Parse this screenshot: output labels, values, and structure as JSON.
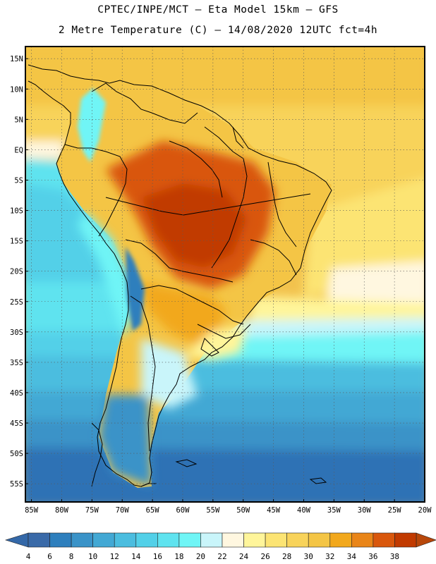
{
  "header": {
    "line1": "CPTEC/INPE/MCT –  Eta Model 15km – GFS",
    "line2": "2 Metre Temperature (C) – 14/08/2020 12UTC fct=4h"
  },
  "map": {
    "lat_labels": [
      "15N",
      "10N",
      "5N",
      "EQ",
      "5S",
      "10S",
      "15S",
      "20S",
      "25S",
      "30S",
      "35S",
      "40S",
      "45S",
      "50S",
      "55S"
    ],
    "lon_labels": [
      "85W",
      "80W",
      "75W",
      "70W",
      "65W",
      "60W",
      "55W",
      "50W",
      "45W",
      "40W",
      "35W",
      "30W",
      "25W",
      "20W"
    ],
    "lat_range": [
      17,
      -58
    ],
    "lon_range": [
      -86,
      -20
    ]
  },
  "colorbar": {
    "labels": [
      "4",
      "6",
      "8",
      "10",
      "12",
      "14",
      "16",
      "18",
      "20",
      "22",
      "24",
      "26",
      "28",
      "30",
      "32",
      "34",
      "36",
      "38"
    ],
    "colors": [
      "#3a6aa8",
      "#2e7fbd",
      "#3a93c8",
      "#42a8d4",
      "#4bbddf",
      "#52d0e8",
      "#5fe3ef",
      "#6ff5f6",
      "#c9f5fa",
      "#fff7e0",
      "#fff59a",
      "#fce473",
      "#f8d35a",
      "#f4c545",
      "#f2a81c",
      "#e98518",
      "#d9570c",
      "#c13a00"
    ],
    "low_color": "#3468a8",
    "high_color": "#b8470a"
  }
}
